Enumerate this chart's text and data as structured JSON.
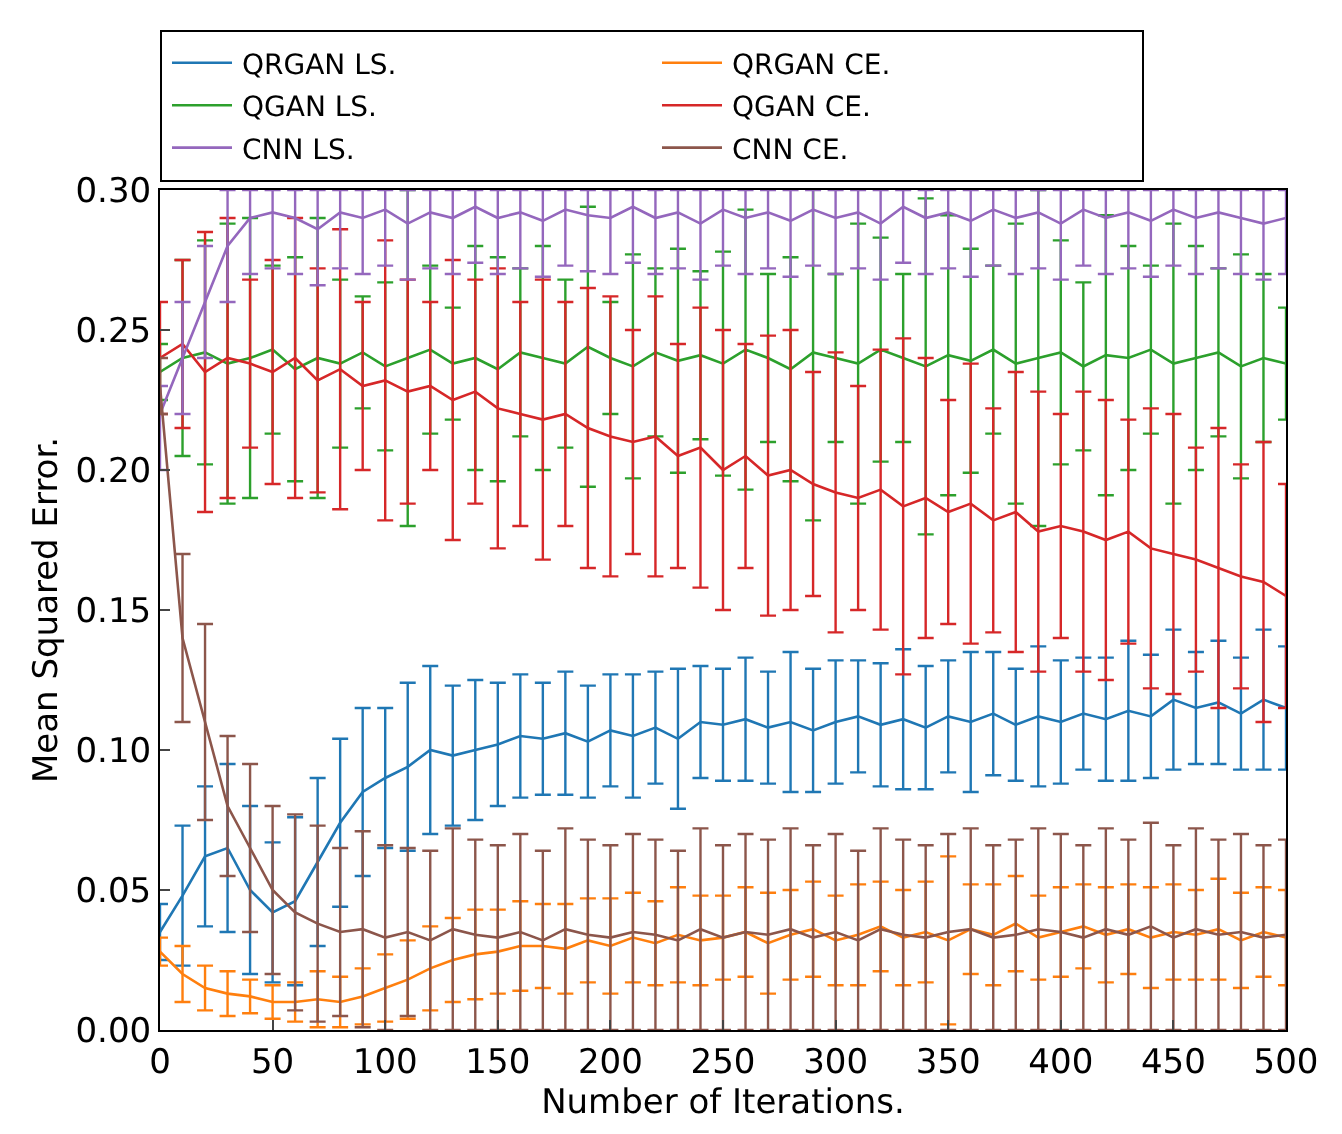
{
  "chart_data": {
    "type": "line",
    "xlabel": "Number of Iterations.",
    "ylabel": "Mean Squared Error.",
    "x": [
      0,
      10,
      20,
      30,
      40,
      50,
      60,
      70,
      80,
      90,
      100,
      110,
      120,
      130,
      140,
      150,
      160,
      170,
      180,
      190,
      200,
      210,
      220,
      230,
      240,
      250,
      260,
      270,
      280,
      290,
      300,
      310,
      320,
      330,
      340,
      350,
      360,
      370,
      380,
      390,
      400,
      410,
      420,
      430,
      440,
      450,
      460,
      470,
      480,
      490,
      500
    ],
    "xlim": [
      0,
      500
    ],
    "xticks": [
      0,
      50,
      100,
      150,
      200,
      250,
      300,
      350,
      400,
      450,
      500
    ],
    "ylim": [
      0,
      0.3
    ],
    "yticks": [
      {
        "value": 0,
        "label": "0.00"
      },
      {
        "value": 0.05,
        "label": "0.05"
      },
      {
        "value": 0.1,
        "label": "0.10"
      },
      {
        "value": 0.15,
        "label": "0.15"
      },
      {
        "value": 0.2,
        "label": "0.20"
      },
      {
        "value": 0.25,
        "label": "0.25"
      },
      {
        "value": 0.3,
        "label": "0.30"
      }
    ],
    "legend": "top left",
    "marker": "none",
    "line_style": "solid",
    "series": [
      {
        "name": "QRGAN LS.",
        "color": "#1f77b4",
        "values": [
          0.035,
          0.048,
          0.062,
          0.065,
          0.05,
          0.042,
          0.046,
          0.06,
          0.074,
          0.085,
          0.09,
          0.094,
          0.1,
          0.098,
          0.1,
          0.102,
          0.105,
          0.104,
          0.106,
          0.103,
          0.107,
          0.105,
          0.108,
          0.104,
          0.11,
          0.109,
          0.111,
          0.108,
          0.11,
          0.107,
          0.11,
          0.112,
          0.109,
          0.111,
          0.108,
          0.112,
          0.11,
          0.113,
          0.109,
          0.112,
          0.11,
          0.113,
          0.111,
          0.114,
          0.112,
          0.118,
          0.115,
          0.117,
          0.113,
          0.118,
          0.115
        ],
        "errors": [
          0.01,
          0.025,
          0.025,
          0.03,
          0.03,
          0.025,
          0.03,
          0.03,
          0.03,
          0.03,
          0.025,
          0.03,
          0.03,
          0.025,
          0.025,
          0.022,
          0.022,
          0.02,
          0.022,
          0.02,
          0.02,
          0.022,
          0.02,
          0.025,
          0.02,
          0.02,
          0.022,
          0.02,
          0.025,
          0.022,
          0.022,
          0.02,
          0.022,
          0.025,
          0.022,
          0.02,
          0.025,
          0.022,
          0.02,
          0.025,
          0.022,
          0.02,
          0.022,
          0.025,
          0.022,
          0.025,
          0.02,
          0.022,
          0.02,
          0.025,
          0.022
        ]
      },
      {
        "name": "QRGAN CE.",
        "color": "#ff7f0e",
        "values": [
          0.028,
          0.02,
          0.015,
          0.013,
          0.012,
          0.01,
          0.01,
          0.011,
          0.01,
          0.012,
          0.015,
          0.018,
          0.022,
          0.025,
          0.027,
          0.028,
          0.03,
          0.03,
          0.029,
          0.032,
          0.03,
          0.033,
          0.031,
          0.034,
          0.032,
          0.033,
          0.035,
          0.031,
          0.034,
          0.036,
          0.032,
          0.034,
          0.037,
          0.033,
          0.035,
          0.032,
          0.036,
          0.034,
          0.038,
          0.033,
          0.035,
          0.037,
          0.034,
          0.036,
          0.033,
          0.035,
          0.034,
          0.036,
          0.032,
          0.035,
          0.033
        ],
        "errors": [
          0.005,
          0.01,
          0.008,
          0.008,
          0.006,
          0.006,
          0.007,
          0.01,
          0.009,
          0.01,
          0.012,
          0.014,
          0.015,
          0.015,
          0.016,
          0.015,
          0.016,
          0.015,
          0.016,
          0.015,
          0.017,
          0.016,
          0.015,
          0.017,
          0.016,
          0.015,
          0.016,
          0.018,
          0.016,
          0.017,
          0.016,
          0.018,
          0.016,
          0.017,
          0.018,
          0.03,
          0.016,
          0.018,
          0.017,
          0.015,
          0.016,
          0.015,
          0.017,
          0.016,
          0.018,
          0.017,
          0.016,
          0.018,
          0.017,
          0.016,
          0.017
        ]
      },
      {
        "name": "QGAN LS.",
        "color": "#2ca02c",
        "values": [
          0.235,
          0.24,
          0.242,
          0.238,
          0.24,
          0.243,
          0.236,
          0.24,
          0.238,
          0.242,
          0.237,
          0.24,
          0.243,
          0.238,
          0.24,
          0.236,
          0.242,
          0.24,
          0.238,
          0.244,
          0.24,
          0.237,
          0.242,
          0.239,
          0.241,
          0.238,
          0.243,
          0.24,
          0.236,
          0.242,
          0.24,
          0.238,
          0.243,
          0.24,
          0.237,
          0.241,
          0.239,
          0.243,
          0.238,
          0.24,
          0.242,
          0.237,
          0.241,
          0.24,
          0.243,
          0.238,
          0.24,
          0.242,
          0.237,
          0.24,
          0.238
        ],
        "errors": [
          0.01,
          0.035,
          0.04,
          0.05,
          0.05,
          0.03,
          0.04,
          0.05,
          0.03,
          0.02,
          0.03,
          0.06,
          0.03,
          0.02,
          0.04,
          0.04,
          0.03,
          0.04,
          0.03,
          0.05,
          0.02,
          0.04,
          0.03,
          0.04,
          0.03,
          0.04,
          0.05,
          0.03,
          0.04,
          0.06,
          0.03,
          0.05,
          0.04,
          0.03,
          0.06,
          0.05,
          0.04,
          0.03,
          0.05,
          0.06,
          0.04,
          0.03,
          0.05,
          0.04,
          0.03,
          0.05,
          0.04,
          0.03,
          0.04,
          0.03,
          0.02
        ]
      },
      {
        "name": "QGAN CE.",
        "color": "#d62728",
        "values": [
          0.24,
          0.245,
          0.235,
          0.24,
          0.238,
          0.235,
          0.24,
          0.232,
          0.236,
          0.23,
          0.232,
          0.228,
          0.23,
          0.225,
          0.228,
          0.222,
          0.22,
          0.218,
          0.22,
          0.215,
          0.212,
          0.21,
          0.212,
          0.205,
          0.208,
          0.2,
          0.205,
          0.198,
          0.2,
          0.195,
          0.192,
          0.19,
          0.193,
          0.187,
          0.19,
          0.185,
          0.188,
          0.182,
          0.185,
          0.178,
          0.18,
          0.178,
          0.175,
          0.178,
          0.172,
          0.17,
          0.168,
          0.165,
          0.162,
          0.16,
          0.155
        ],
        "errors": [
          0.02,
          0.03,
          0.05,
          0.05,
          0.03,
          0.04,
          0.05,
          0.04,
          0.05,
          0.03,
          0.05,
          0.04,
          0.03,
          0.05,
          0.04,
          0.05,
          0.04,
          0.05,
          0.04,
          0.05,
          0.05,
          0.04,
          0.05,
          0.04,
          0.05,
          0.05,
          0.04,
          0.05,
          0.05,
          0.04,
          0.05,
          0.04,
          0.05,
          0.06,
          0.05,
          0.04,
          0.05,
          0.04,
          0.05,
          0.05,
          0.04,
          0.05,
          0.05,
          0.04,
          0.05,
          0.05,
          0.04,
          0.05,
          0.04,
          0.05,
          0.04
        ]
      },
      {
        "name": "CNN LS.",
        "color": "#9467bd",
        "values": [
          0.22,
          0.24,
          0.26,
          0.28,
          0.29,
          0.292,
          0.29,
          0.286,
          0.292,
          0.29,
          0.293,
          0.288,
          0.292,
          0.29,
          0.294,
          0.29,
          0.292,
          0.289,
          0.293,
          0.291,
          0.29,
          0.294,
          0.29,
          0.292,
          0.288,
          0.293,
          0.29,
          0.292,
          0.289,
          0.293,
          0.29,
          0.292,
          0.288,
          0.294,
          0.29,
          0.292,
          0.289,
          0.293,
          0.29,
          0.292,
          0.288,
          0.293,
          0.29,
          0.292,
          0.289,
          0.293,
          0.29,
          0.292,
          0.29,
          0.288,
          0.29
        ],
        "errors": [
          [
            0.2,
            0.23
          ],
          [
            0.22,
            0.26
          ],
          [
            0.24,
            0.28
          ],
          [
            0.26,
            0.3
          ],
          [
            0.27,
            0.3
          ],
          [
            0.272,
            0.3
          ],
          [
            0.27,
            0.3
          ],
          [
            0.266,
            0.3
          ],
          [
            0.272,
            0.3
          ],
          [
            0.27,
            0.3
          ],
          [
            0.273,
            0.3
          ],
          [
            0.268,
            0.3
          ],
          [
            0.272,
            0.3
          ],
          [
            0.27,
            0.3
          ],
          [
            0.274,
            0.3
          ],
          [
            0.27,
            0.3
          ],
          [
            0.272,
            0.3
          ],
          [
            0.269,
            0.3
          ],
          [
            0.273,
            0.3
          ],
          [
            0.271,
            0.3
          ],
          [
            0.27,
            0.3
          ],
          [
            0.274,
            0.3
          ],
          [
            0.27,
            0.3
          ],
          [
            0.272,
            0.3
          ],
          [
            0.268,
            0.3
          ],
          [
            0.273,
            0.3
          ],
          [
            0.27,
            0.3
          ],
          [
            0.272,
            0.3
          ],
          [
            0.269,
            0.3
          ],
          [
            0.273,
            0.3
          ],
          [
            0.27,
            0.3
          ],
          [
            0.272,
            0.3
          ],
          [
            0.268,
            0.3
          ],
          [
            0.274,
            0.3
          ],
          [
            0.27,
            0.3
          ],
          [
            0.272,
            0.3
          ],
          [
            0.269,
            0.3
          ],
          [
            0.273,
            0.3
          ],
          [
            0.27,
            0.3
          ],
          [
            0.272,
            0.3
          ],
          [
            0.268,
            0.3
          ],
          [
            0.273,
            0.3
          ],
          [
            0.27,
            0.3
          ],
          [
            0.272,
            0.3
          ],
          [
            0.269,
            0.3
          ],
          [
            0.273,
            0.3
          ],
          [
            0.27,
            0.3
          ],
          [
            0.272,
            0.3
          ],
          [
            0.27,
            0.3
          ],
          [
            0.268,
            0.3
          ],
          [
            0.27,
            0.3
          ]
        ]
      },
      {
        "name": "CNN CE.",
        "color": "#8c564b",
        "values": [
          0.23,
          0.14,
          0.11,
          0.08,
          0.065,
          0.05,
          0.042,
          0.038,
          0.035,
          0.036,
          0.033,
          0.035,
          0.032,
          0.036,
          0.034,
          0.033,
          0.035,
          0.032,
          0.036,
          0.034,
          0.033,
          0.035,
          0.034,
          0.032,
          0.036,
          0.033,
          0.035,
          0.034,
          0.036,
          0.033,
          0.035,
          0.032,
          0.036,
          0.034,
          0.033,
          0.035,
          0.036,
          0.033,
          0.034,
          0.036,
          0.035,
          0.033,
          0.036,
          0.034,
          0.037,
          0.033,
          0.036,
          0.034,
          0.035,
          0.033,
          0.034
        ],
        "errors": [
          0.01,
          0.03,
          0.035,
          0.025,
          0.03,
          0.03,
          0.035,
          0.035,
          0.03,
          0.035,
          0.033,
          0.03,
          0.032,
          0.036,
          0.034,
          0.033,
          0.035,
          0.032,
          0.036,
          0.034,
          0.033,
          0.035,
          0.034,
          0.032,
          0.036,
          0.033,
          0.035,
          0.034,
          0.036,
          0.033,
          0.035,
          0.032,
          0.036,
          0.034,
          0.033,
          0.035,
          0.036,
          0.033,
          0.034,
          0.036,
          0.035,
          0.033,
          0.036,
          0.034,
          0.037,
          0.033,
          0.036,
          0.034,
          0.035,
          0.033,
          0.034
        ]
      }
    ]
  }
}
